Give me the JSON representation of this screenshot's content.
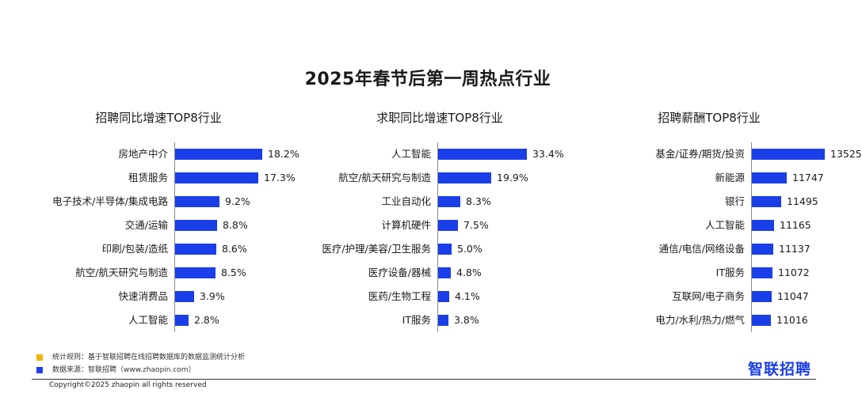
{
  "title": "2025年春节后第一周热点行业",
  "colors": {
    "bar": "#1a3ee8",
    "note_rule": "#f2b400",
    "note_source": "#1a3ee8",
    "logo": "#1a3ee8"
  },
  "chart_data": [
    {
      "type": "bar",
      "orientation": "horizontal",
      "title": "招聘同比增速TOP8行业",
      "categories": [
        "房地产中介",
        "租赁服务",
        "电子技术/半导体/集成电路",
        "交通/运输",
        "印刷/包装/造纸",
        "航空/航天研究与制造",
        "快速消费品",
        "人工智能"
      ],
      "values": [
        18.2,
        17.3,
        9.2,
        8.8,
        8.6,
        8.5,
        3.9,
        2.8
      ],
      "labels": [
        "18.2%",
        "17.3%",
        "9.2%",
        "8.8%",
        "8.6%",
        "8.5%",
        "3.9%",
        "2.8%"
      ]
    },
    {
      "type": "bar",
      "orientation": "horizontal",
      "title": "求职同比增速TOP8行业",
      "categories": [
        "人工智能",
        "航空/航天研究与制造",
        "工业自动化",
        "计算机硬件",
        "医疗/护理/美容/卫生服务",
        "医疗设备/器械",
        "医药/生物工程",
        "IT服务"
      ],
      "values": [
        33.4,
        19.9,
        8.3,
        7.5,
        5.0,
        4.8,
        4.1,
        3.8
      ],
      "labels": [
        "33.4%",
        "19.9%",
        "8.3%",
        "7.5%",
        "5.0%",
        "4.8%",
        "4.1%",
        "3.8%"
      ]
    },
    {
      "type": "bar",
      "orientation": "horizontal",
      "title": "招聘薪酬TOP8行业",
      "categories": [
        "基金/证券/期货/投资",
        "新能源",
        "银行",
        "人工智能",
        "通信/电信/网络设备",
        "IT服务",
        "互联网/电子商务",
        "电力/水利/热力/燃气"
      ],
      "values": [
        13525,
        11747,
        11495,
        11165,
        11137,
        11072,
        11047,
        11016
      ],
      "labels": [
        "13525",
        "11747",
        "11495",
        "11165",
        "11137",
        "11072",
        "11047",
        "11016"
      ],
      "axis_min": 10200
    }
  ],
  "notes": {
    "rule": "统计规则：基于智联招聘在线招聘数据库的数据监测统计分析",
    "source": "数据来源：智联招聘（www.zhaopin.com）"
  },
  "copyright": "Copyright©2025 zhaopin all rights reserved",
  "logo": "智联招聘"
}
